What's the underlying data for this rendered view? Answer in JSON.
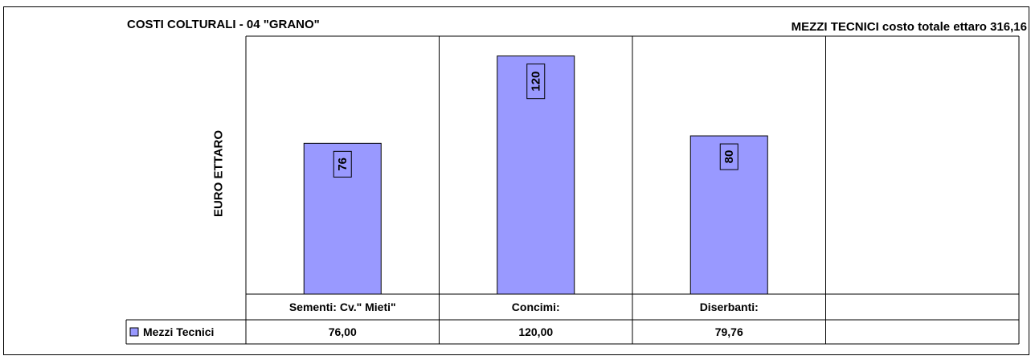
{
  "chart_data": {
    "type": "bar",
    "title": "COSTI COLTURALI - 04 \"GRANO\"",
    "subtitle": "MEZZI TECNICI costo totale ettaro 316,16",
    "ylabel": "EURO ETTARO",
    "xlabel": "",
    "categories": [
      "Sementi:    Cv.\" Mieti\"",
      "Concimi:",
      "Diserbanti:",
      ""
    ],
    "series": [
      {
        "name": "Mezzi Tecnici",
        "values": [
          76,
          120,
          79.76,
          null
        ],
        "data_labels": [
          "76",
          "120",
          "80",
          ""
        ],
        "table_values": [
          "76,00",
          "120,00",
          "79,76",
          ""
        ],
        "color": "#9999ff"
      }
    ],
    "ylim": [
      0,
      130
    ],
    "grid": false,
    "legend_placement": "data-table-left"
  }
}
